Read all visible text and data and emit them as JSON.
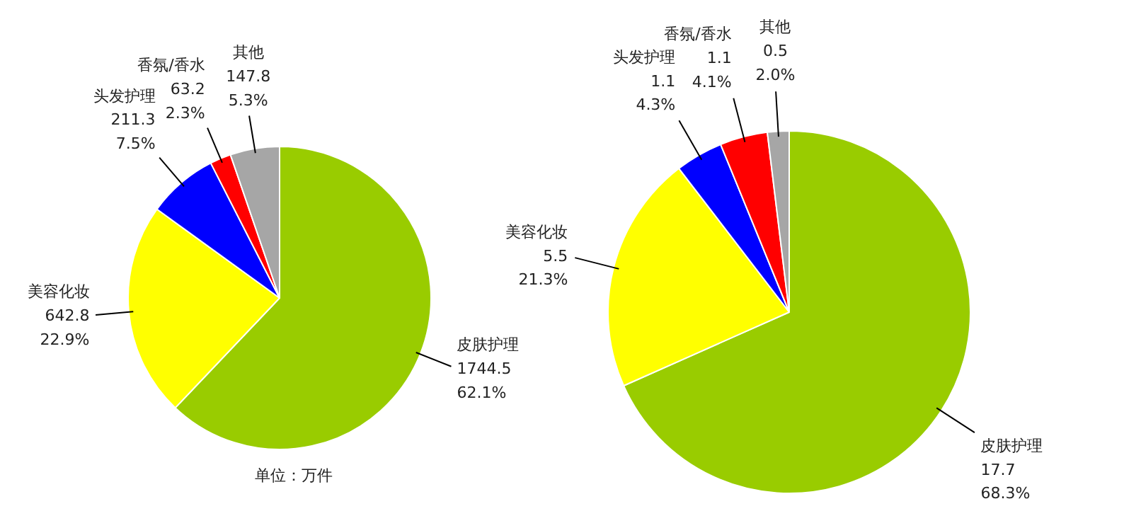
{
  "chart_data": [
    {
      "type": "pie",
      "categories": [
        "皮肤护理",
        "美容化妆",
        "头发护理",
        "香氛/香水",
        "其他"
      ],
      "values": [
        1744.5,
        642.8,
        211.3,
        63.2,
        147.8
      ],
      "value_labels": [
        "1744.5\n62.1%",
        "642.8\n22.9%",
        "211.3\n7.5%",
        "63.2\n2.3%",
        "147.8\n5.3%"
      ],
      "colors": [
        "#99cc00",
        "#ffff00",
        "#0000ff",
        "#ff0000",
        "#a6a6a6"
      ],
      "annotations": [
        "单位：万件"
      ]
    },
    {
      "type": "pie",
      "categories": [
        "皮肤护理",
        "美容化妆",
        "头发护理",
        "香氛/香水",
        "其他"
      ],
      "values": [
        17.7,
        5.5,
        1.1,
        1.1,
        0.5
      ],
      "value_labels": [
        "17.7\n68.3%",
        "5.5\n21.3%",
        "1.1\n4.3%",
        "1.1\n4.1%",
        "0.5\n2.0%"
      ],
      "colors": [
        "#99cc00",
        "#ffff00",
        "#0000ff",
        "#ff0000",
        "#a6a6a6"
      ]
    }
  ]
}
